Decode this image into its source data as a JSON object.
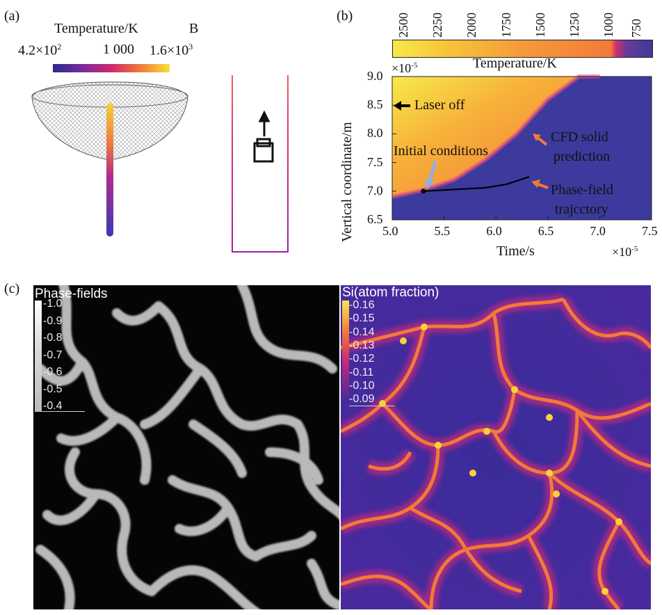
{
  "figure": {
    "panel_a": {
      "label": "(a)",
      "colorbar": {
        "title": "Temperature/K",
        "tick_min": "4.2×10",
        "tick_min_exp": "2",
        "tick_mid": "1 000",
        "tick_max": "1.6×10",
        "tick_max_exp": "3",
        "colors": [
          "#2b2a8c",
          "#7a2aa0",
          "#d0286e",
          "#f07a3a",
          "#f6e13a"
        ]
      },
      "marker": "B"
    },
    "panel_b": {
      "label": "(b)",
      "colorbar": {
        "title": "Temperature/K",
        "ticks": [
          "2500",
          "2250",
          "2000",
          "1750",
          "1500",
          "1250",
          "1000",
          "750"
        ]
      },
      "annotations": {
        "laser_off": "Laser off",
        "cfd_line1": "CFD solid",
        "cfd_line2": "prediction",
        "initial": "Initial conditions",
        "pf_line1": "Phase-field",
        "pf_line2": "trajcctory"
      },
      "x_multiplier": "×10",
      "x_multiplier_exp": "-5",
      "y_multiplier": "×10",
      "y_multiplier_exp": "-5"
    },
    "panel_c": {
      "label": "(c)",
      "left_title": "Phase-fields",
      "left_ticks": [
        "1.0",
        "0.9",
        "0.8",
        "0.7",
        "0.6",
        "0.5",
        "0.4"
      ],
      "right_title": "Si(atom fraction)",
      "right_ticks": [
        "0.16",
        "0.15",
        "0.14",
        "0.13",
        "0.12",
        "0.11",
        "0.10",
        "0.09"
      ]
    }
  },
  "chart_data": {
    "type": "heatmap",
    "xlabel": "Time/s",
    "ylabel": "Vertical coordinate/m",
    "x_ticks": [
      "5.0",
      "5.5",
      "6.0",
      "6.5",
      "7.0",
      "7.5"
    ],
    "y_ticks": [
      "9.0",
      "8.5",
      "8.0",
      "7.5",
      "7.0",
      "6.5"
    ],
    "xlim": [
      5.0,
      7.5
    ],
    "ylim": [
      6.5,
      9.0
    ],
    "colorbar_range_K": [
      750,
      2500
    ],
    "series": [
      {
        "name": "Phase-field trajcctory",
        "x": [
          5.3,
          5.6,
          5.9,
          6.1,
          6.32
        ],
        "y": [
          7.0,
          7.03,
          7.06,
          7.12,
          7.25
        ]
      }
    ],
    "solid_boundary": {
      "x": [
        5.0,
        5.3,
        5.6,
        5.9,
        6.2,
        6.5,
        6.8,
        7.0
      ],
      "y": [
        6.9,
        7.02,
        7.2,
        7.55,
        8.0,
        8.6,
        9.0,
        9.0
      ]
    },
    "initial_point": {
      "x": 5.3,
      "y": 7.0
    }
  }
}
